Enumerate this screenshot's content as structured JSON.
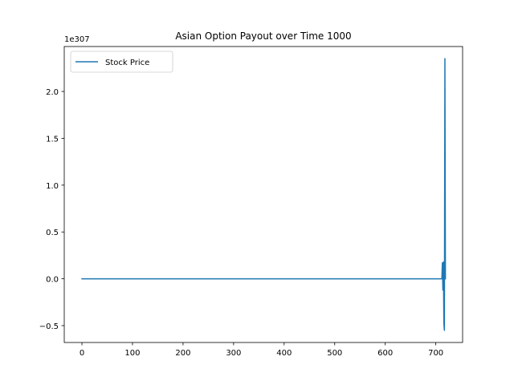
{
  "chart_data": {
    "type": "line",
    "title": "Asian Option Payout over Time 1000",
    "xlabel": "",
    "ylabel": "",
    "y_offset_label": "1e307",
    "xlim": [
      -35,
      753
    ],
    "ylim": [
      -0.68,
      2.48
    ],
    "x_ticks": [
      0,
      100,
      200,
      300,
      400,
      500,
      600,
      700
    ],
    "x_tick_labels": [
      "0",
      "100",
      "200",
      "300",
      "400",
      "500",
      "600",
      "700"
    ],
    "y_ticks": [
      -0.5,
      0.0,
      0.5,
      1.0,
      1.5,
      2.0
    ],
    "y_tick_labels": [
      "−0.5",
      "0.0",
      "0.5",
      "1.0",
      "1.5",
      "2.0"
    ],
    "grid": false,
    "legend_position": "upper left",
    "series": [
      {
        "name": "Stock Price",
        "color": "#1f77b4",
        "x": [
          0,
          100,
          200,
          300,
          400,
          500,
          600,
          700,
          712,
          713,
          714,
          715,
          716,
          717,
          718,
          719
        ],
        "y": [
          0,
          0,
          0,
          0,
          0,
          0,
          0,
          0,
          0,
          0.17,
          -0.12,
          0.18,
          -0.48,
          -0.55,
          2.35,
          0
        ]
      }
    ]
  }
}
